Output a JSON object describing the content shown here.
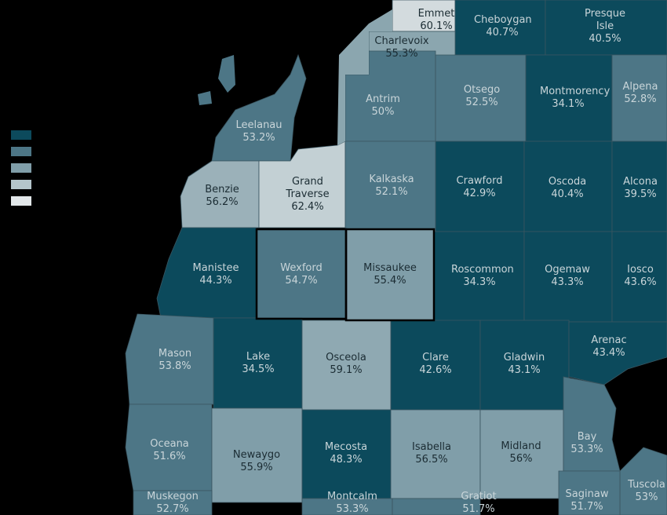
{
  "counties": [
    {
      "name": "Emmet",
      "share": "60.1%",
      "shade": "#d3dbde"
    },
    {
      "name": "Cheboygan",
      "share": "40.7%",
      "shade": "#0c4a5c"
    },
    {
      "name": "Presque Isle",
      "share": "40.5%",
      "shade": "#0c4a5c"
    },
    {
      "name": "Charlevoix",
      "share": "55.3%",
      "shade": "#8ba6af"
    },
    {
      "name": "Antrim",
      "share": "50%",
      "shade": "#4d7686"
    },
    {
      "name": "Otsego",
      "share": "52.5%",
      "shade": "#4d7686"
    },
    {
      "name": "Montmorency",
      "share": "34.1%",
      "shade": "#0c4a5c"
    },
    {
      "name": "Alpena",
      "share": "52.8%",
      "shade": "#4d7686"
    },
    {
      "name": "Leelanau",
      "share": "53.2%",
      "shade": "#4d7686"
    },
    {
      "name": "Benzie",
      "share": "56.2%",
      "shade": "#9bb1b9"
    },
    {
      "name": "Grand Traverse",
      "share": "62.4%",
      "shade": "#c3d0d4"
    },
    {
      "name": "Kalkaska",
      "share": "52.1%",
      "shade": "#4d7686"
    },
    {
      "name": "Crawford",
      "share": "42.9%",
      "shade": "#0c4a5c"
    },
    {
      "name": "Oscoda",
      "share": "40.4%",
      "shade": "#0c4a5c"
    },
    {
      "name": "Alcona",
      "share": "39.5%",
      "shade": "#0c4a5c"
    },
    {
      "name": "Manistee",
      "share": "44.3%",
      "shade": "#0c4a5c"
    },
    {
      "name": "Wexford",
      "share": "54.7%",
      "shade": "#4d7686"
    },
    {
      "name": "Missaukee",
      "share": "55.4%",
      "shade": "#809ea9"
    },
    {
      "name": "Roscommon",
      "share": "34.3%",
      "shade": "#0c4a5c"
    },
    {
      "name": "Ogemaw",
      "share": "43.3%",
      "shade": "#0c4a5c"
    },
    {
      "name": "Iosco",
      "share": "43.6%",
      "shade": "#0c4a5c"
    },
    {
      "name": "Mason",
      "share": "53.8%",
      "shade": "#4d7686"
    },
    {
      "name": "Lake",
      "share": "34.5%",
      "shade": "#0c4a5c"
    },
    {
      "name": "Osceola",
      "share": "59.1%",
      "shade": "#8fa9b2"
    },
    {
      "name": "Clare",
      "share": "42.6%",
      "shade": "#0c4a5c"
    },
    {
      "name": "Gladwin",
      "share": "43.1%",
      "shade": "#0c4a5c"
    },
    {
      "name": "Arenac",
      "share": "43.4%",
      "shade": "#0c4a5c"
    },
    {
      "name": "Oceana",
      "share": "51.6%",
      "shade": "#4d7686"
    },
    {
      "name": "Newaygo",
      "share": "55.9%",
      "shade": "#809ea9"
    },
    {
      "name": "Mecosta",
      "share": "48.3%",
      "shade": "#0c4a5c"
    },
    {
      "name": "Isabella",
      "share": "56.5%",
      "shade": "#809ea9"
    },
    {
      "name": "Midland",
      "share": "56%",
      "shade": "#809ea9"
    },
    {
      "name": "Bay",
      "share": "53.3%",
      "shade": "#4d7686"
    },
    {
      "name": "Tuscola",
      "share": "53%",
      "shade": "#4d7686"
    },
    {
      "name": "Saginaw",
      "share": "51.7%",
      "shade": "#4d7686"
    },
    {
      "name": "Muskegon",
      "share": "52.7%",
      "shade": "#4d7686"
    },
    {
      "name": "Montcalm",
      "share": "53.3%",
      "shade": "#4d7686"
    },
    {
      "name": "Gratiot",
      "share": "51.7%",
      "shade": "#4d7686"
    }
  ]
}
